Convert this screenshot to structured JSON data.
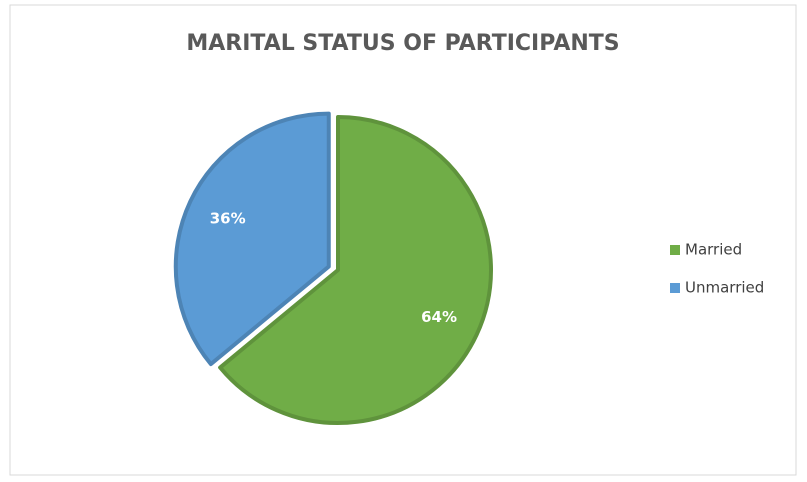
{
  "chart_data": {
    "type": "pie",
    "title": "MARITAL STATUS OF PARTICIPANTS",
    "categories": [
      "Married",
      "Unmarried"
    ],
    "values": [
      64,
      36
    ],
    "value_labels": [
      "64%",
      "36%"
    ],
    "colors": [
      "#70ad47",
      "#5b9bd5"
    ],
    "legend": "right",
    "exploded": true
  }
}
